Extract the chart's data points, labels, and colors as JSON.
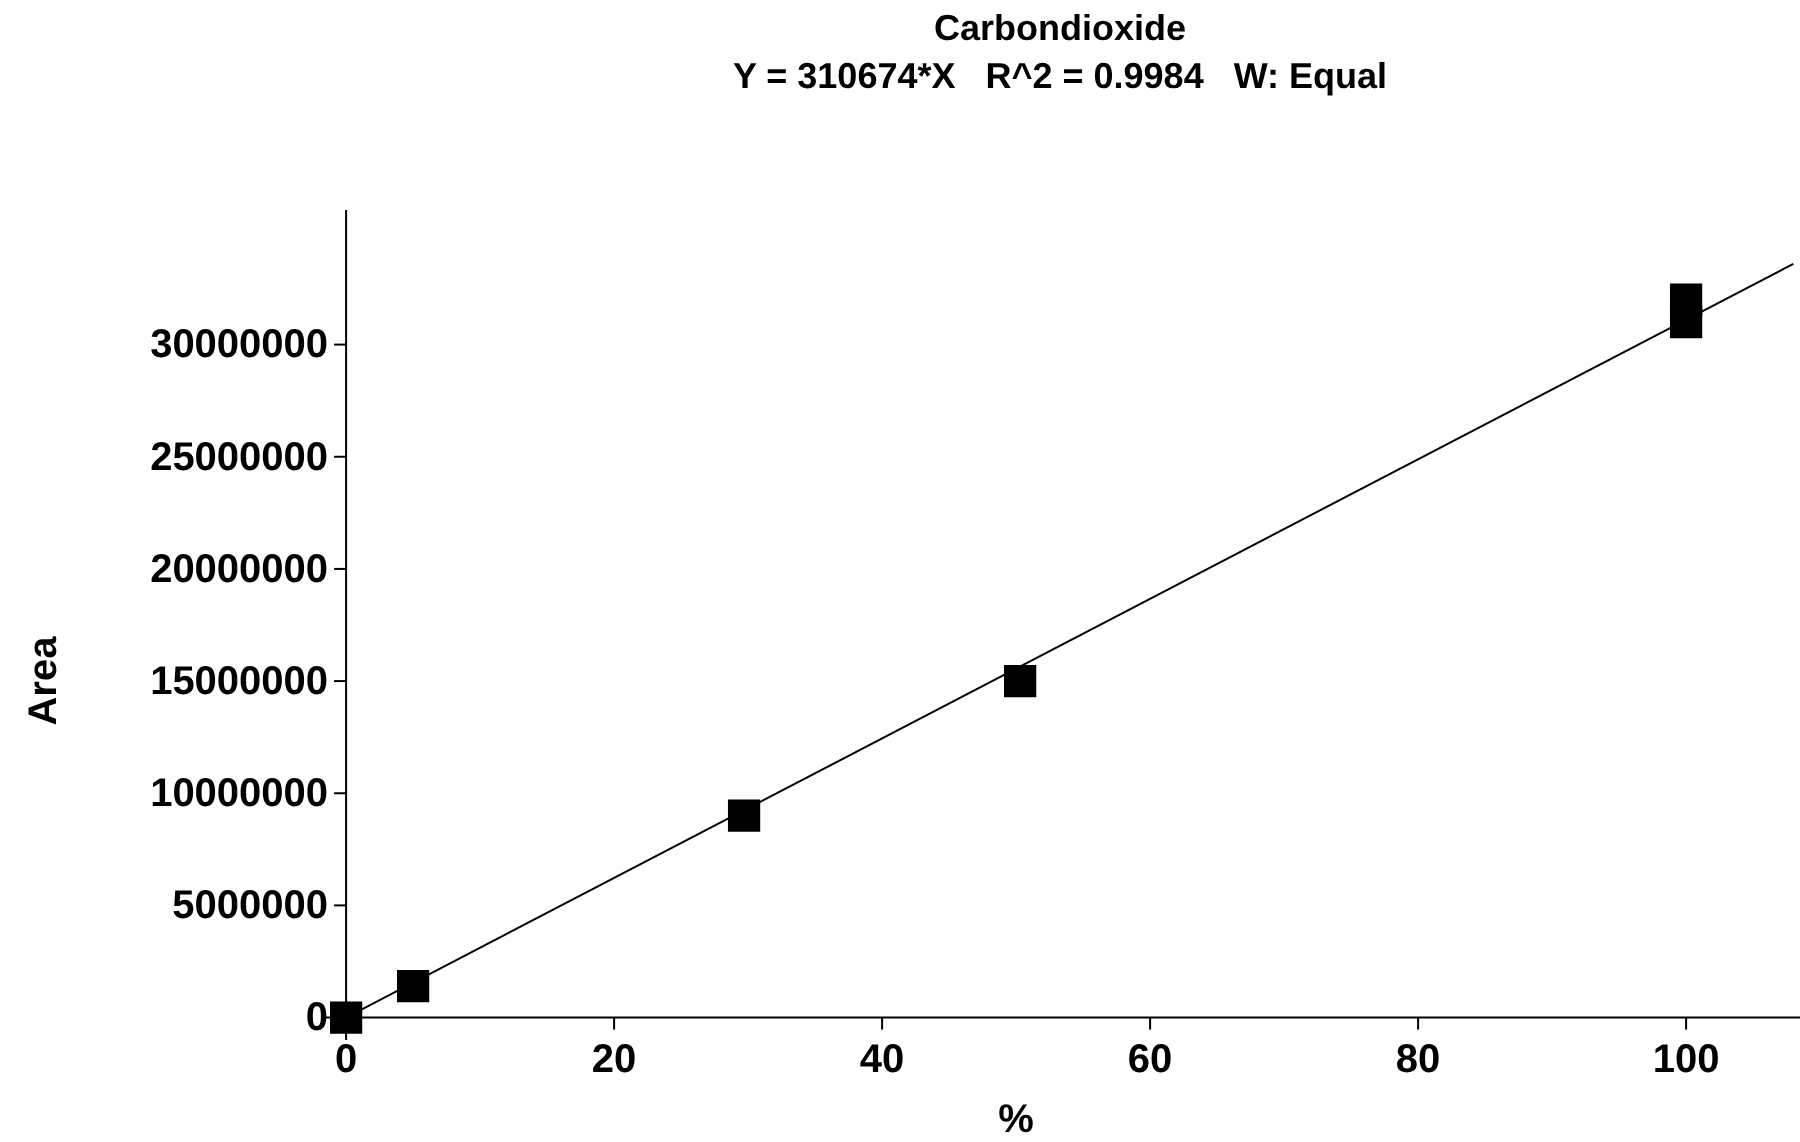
{
  "chart_data": {
    "type": "scatter",
    "title": "Carbondioxide",
    "subtitle": "Y = 310674*X   R^2 = 0.9984   W: Equal",
    "xlabel": "%",
    "ylabel": "Area",
    "xlim": [
      -1.5,
      108.5
    ],
    "ylim": [
      -1000000,
      36000000
    ],
    "xticks": [
      0,
      20,
      40,
      60,
      80,
      100
    ],
    "yticks": [
      0,
      5000000,
      10000000,
      15000000,
      20000000,
      25000000,
      30000000
    ],
    "grid": false,
    "series": [
      {
        "color": "#000000",
        "marker": "square",
        "x": [
          0,
          5,
          29.7,
          50.3,
          100,
          100
        ],
        "values": [
          0,
          1400000,
          9000000,
          15000000,
          31000000,
          32000000
        ]
      },
      {
        "type": "line",
        "color": "#000000",
        "marker": "none",
        "line_style": "solid",
        "x": [
          0,
          108
        ],
        "values": [
          0,
          33600000
        ]
      }
    ]
  }
}
